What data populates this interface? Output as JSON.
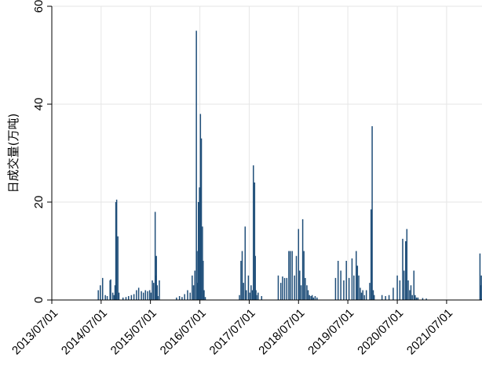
{
  "chart_data": {
    "type": "bar",
    "ylabel": "日成交量(万吨)",
    "ylim": [
      0,
      60
    ],
    "yticks": [
      0,
      20,
      40,
      60
    ],
    "x_range": [
      "2013/07/01",
      "2022/03/20"
    ],
    "xticks": [
      "2013/07/01",
      "2014/07/01",
      "2015/07/01",
      "2016/07/01",
      "2017/07/01",
      "2018/07/01",
      "2019/07/01",
      "2020/07/01",
      "2021/07/01"
    ],
    "grid": true,
    "bar_color": "#1f4e79",
    "series": [
      {
        "dates": [
          "2014/06/10",
          "2014/06/25",
          "2014/07/12",
          "2014/08/01",
          "2014/08/15",
          "2014/09/05",
          "2014/09/10",
          "2014/09/25",
          "2014/10/05",
          "2014/10/12",
          "2014/10/18",
          "2014/10/24",
          "2014/11/02",
          "2014/11/10",
          "2014/12/10",
          "2015/01/01",
          "2015/01/20",
          "2015/02/10",
          "2015/03/01",
          "2015/03/20",
          "2015/04/05",
          "2015/04/25",
          "2015/05/10",
          "2015/05/25",
          "2015/06/10",
          "2015/06/25",
          "2015/07/05",
          "2015/07/15",
          "2015/07/25",
          "2015/08/05",
          "2015/08/10",
          "2015/08/14",
          "2015/08/20",
          "2015/08/25",
          "2015/09/05",
          "2016/01/10",
          "2016/02/01",
          "2016/02/20",
          "2016/03/10",
          "2016/04/01",
          "2016/04/20",
          "2016/05/05",
          "2016/05/15",
          "2016/05/25",
          "2016/06/05",
          "2016/06/10",
          "2016/06/15",
          "2016/06/20",
          "2016/06/28",
          "2016/07/05",
          "2016/07/12",
          "2016/07/20",
          "2016/07/25",
          "2016/08/01",
          "2016/08/10",
          "2017/04/20",
          "2017/05/01",
          "2017/05/10",
          "2017/05/20",
          "2017/06/01",
          "2017/06/10",
          "2017/06/25",
          "2017/07/05",
          "2017/07/15",
          "2017/07/25",
          "2017/08/01",
          "2017/08/10",
          "2017/08/15",
          "2017/08/20",
          "2017/08/25",
          "2017/09/05",
          "2017/10/01",
          "2018/02/01",
          "2018/02/20",
          "2018/03/05",
          "2018/03/20",
          "2018/04/05",
          "2018/04/20",
          "2018/05/01",
          "2018/05/15",
          "2018/06/01",
          "2018/06/15",
          "2018/07/01",
          "2018/07/10",
          "2018/07/20",
          "2018/08/01",
          "2018/08/10",
          "2018/08/20",
          "2018/09/01",
          "2018/09/10",
          "2018/09/20",
          "2018/10/01",
          "2018/10/10",
          "2018/10/20",
          "2018/11/01",
          "2018/11/15",
          "2019/04/01",
          "2019/04/20",
          "2019/05/10",
          "2019/06/01",
          "2019/06/20",
          "2019/07/10",
          "2019/08/01",
          "2019/08/15",
          "2019/09/01",
          "2019/09/10",
          "2019/09/20",
          "2019/10/01",
          "2019/10/10",
          "2019/10/20",
          "2019/11/01",
          "2019/11/15",
          "2019/12/10",
          "2019/12/20",
          "2019/12/28",
          "2020/01/05",
          "2020/01/12",
          "2020/03/10",
          "2020/04/05",
          "2020/05/01",
          "2020/06/01",
          "2020/07/01",
          "2020/07/20",
          "2020/08/10",
          "2020/08/20",
          "2020/09/01",
          "2020/09/10",
          "2020/09/20",
          "2020/10/01",
          "2020/10/10",
          "2020/10/20",
          "2020/11/01",
          "2020/11/10",
          "2020/11/20",
          "2020/12/01",
          "2021/01/05",
          "2021/02/01",
          "2022/03/05",
          "2022/03/10",
          "2022/03/15"
        ],
        "values": [
          2,
          3,
          4.5,
          1,
          0.8,
          4,
          4.2,
          1.5,
          1,
          3,
          20,
          20.5,
          13,
          1.5,
          0.5,
          0.6,
          0.8,
          1,
          1.2,
          2,
          2.5,
          1.8,
          1.5,
          2,
          1.8,
          2,
          1.5,
          4,
          3.5,
          18,
          5,
          9,
          3,
          0.8,
          4,
          0.5,
          0.8,
          0.6,
          1.2,
          2,
          1.5,
          5,
          3,
          6,
          55,
          10,
          3.5,
          20,
          23,
          38,
          33,
          15,
          8,
          2,
          0.6,
          1,
          8,
          10,
          3.5,
          15,
          2,
          5,
          1.5,
          3,
          2,
          27.5,
          24,
          9,
          2,
          1,
          1.5,
          0.8,
          5,
          3.5,
          4.8,
          4.5,
          4.5,
          10,
          10,
          10,
          5,
          9,
          14.5,
          6,
          3,
          16.5,
          10,
          4.5,
          3,
          2,
          1,
          0.8,
          1,
          0.5,
          0.8,
          0.5,
          4.5,
          8,
          6,
          4,
          8,
          4.5,
          8.5,
          5,
          10,
          7,
          5,
          2.5,
          1.5,
          2,
          1,
          2,
          3.5,
          18.5,
          35.5,
          2,
          1,
          1,
          0.8,
          1,
          2.5,
          5,
          4,
          12.5,
          6,
          12,
          14.5,
          4,
          2,
          3,
          1,
          6,
          1,
          0.5,
          0.5,
          0.4,
          0.3,
          9.5,
          3,
          5
        ]
      }
    ]
  }
}
